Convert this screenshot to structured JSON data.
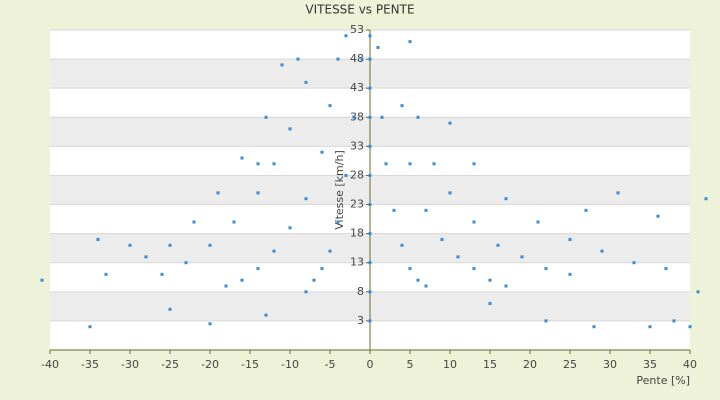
{
  "chart_data": {
    "type": "scatter",
    "title": "VITESSE vs PENTE",
    "x_label": "Pente [%]",
    "y_label": "Vitesse [km/h]",
    "color": "#3a8ad4",
    "grid": true,
    "banded": true,
    "xlim": [
      -40,
      40
    ],
    "xticks": [
      -40,
      -35,
      -30,
      -25,
      -20,
      -15,
      -10,
      -5,
      0,
      5,
      10,
      15,
      20,
      25,
      30,
      35,
      40
    ],
    "ylim": [
      -2,
      53
    ],
    "yticks": [
      3,
      8,
      13,
      18,
      23,
      28,
      33,
      38,
      43,
      48,
      53
    ],
    "x": [
      1,
      1.5,
      2,
      3,
      4,
      5,
      6,
      7,
      4,
      5,
      7,
      9,
      11,
      13,
      15,
      17,
      6,
      8,
      10,
      13,
      16,
      19,
      22,
      25,
      10,
      13,
      17,
      21,
      25,
      29,
      33,
      37,
      -1,
      -2,
      -3,
      -4,
      -5,
      -6,
      -7,
      -8,
      -4,
      -5,
      -6,
      -8,
      -10,
      -12,
      -14,
      -16,
      -18,
      -8,
      -10,
      -12,
      -14,
      -17,
      -20,
      -23,
      -26,
      -11,
      -13,
      -16,
      -19,
      -22,
      -25,
      -28,
      -33,
      0,
      0,
      0,
      0,
      0,
      0,
      0,
      0,
      0,
      0,
      0,
      -41,
      -35,
      -34,
      -30,
      -25,
      -20,
      -13,
      28,
      35,
      38,
      40,
      42,
      41,
      31,
      36,
      27,
      15,
      22,
      5,
      -3,
      -9,
      -14
    ],
    "values": [
      50,
      38,
      30,
      22,
      16,
      12,
      10,
      9,
      40,
      30,
      22,
      17,
      14,
      12,
      10,
      9,
      38,
      30,
      25,
      20,
      16,
      14,
      12,
      11,
      37,
      30,
      24,
      20,
      17,
      15,
      13,
      12,
      48,
      38,
      28,
      20,
      15,
      12,
      10,
      8,
      48,
      40,
      32,
      24,
      19,
      15,
      12,
      10,
      9,
      44,
      36,
      30,
      25,
      20,
      16,
      13,
      11,
      47,
      38,
      31,
      25,
      20,
      16,
      14,
      11,
      3,
      8,
      13,
      18,
      23,
      28,
      33,
      38,
      43,
      48,
      52,
      10,
      2,
      17,
      16,
      5,
      2.5,
      4,
      2,
      2,
      3,
      2,
      24,
      8,
      25,
      21,
      22,
      6,
      3,
      51,
      52,
      48,
      30
    ]
  }
}
